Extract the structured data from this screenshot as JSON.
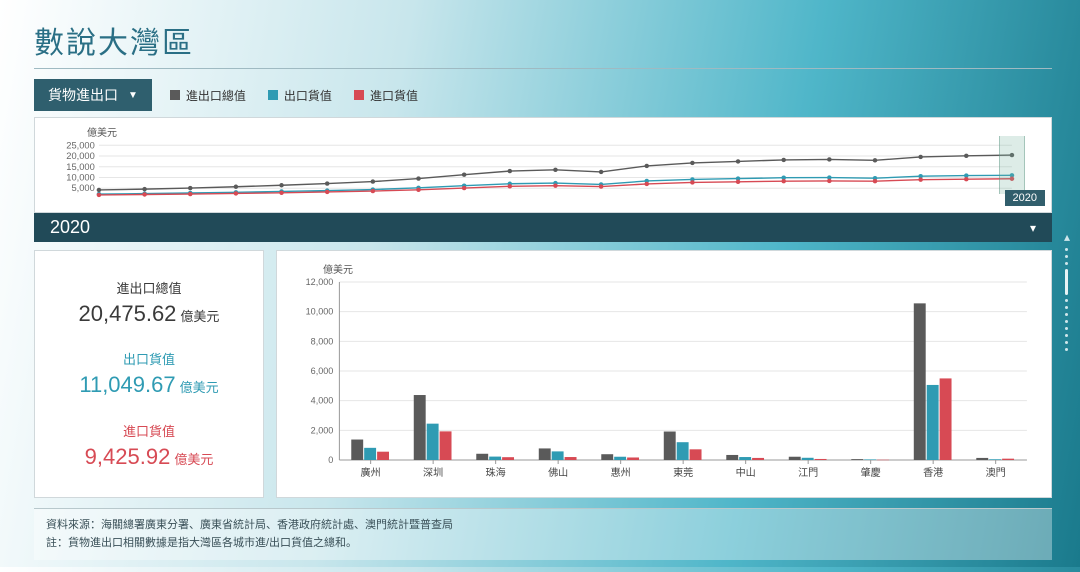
{
  "title": "數說大灣區",
  "dropdown": {
    "label": "貨物進出口"
  },
  "legend": [
    {
      "label": "進出口總值",
      "color": "#5a5a5a"
    },
    {
      "label": "出口貨值",
      "color": "#2f9bb3"
    },
    {
      "label": "進口貨值",
      "color": "#d74a54"
    }
  ],
  "line_chart": {
    "y_axis_label": "億美元",
    "y_ticks": [
      5000,
      10000,
      15000,
      20000,
      25000
    ],
    "ylim": [
      0,
      27000
    ],
    "n_points": 21,
    "series": [
      {
        "color": "#5a5a5a",
        "values": [
          4200,
          4600,
          5100,
          5700,
          6400,
          7200,
          8100,
          9500,
          11300,
          13000,
          13600,
          12600,
          15400,
          16800,
          17500,
          18200,
          18400,
          18000,
          19600,
          20100,
          20476
        ]
      },
      {
        "color": "#2f9bb3",
        "values": [
          2300,
          2500,
          2800,
          3100,
          3500,
          3900,
          4400,
          5200,
          6200,
          7100,
          7400,
          6800,
          8400,
          9100,
          9500,
          9900,
          10000,
          9700,
          10600,
          10900,
          11050
        ]
      },
      {
        "color": "#d74a54",
        "values": [
          1900,
          2100,
          2300,
          2600,
          2900,
          3300,
          3700,
          4300,
          5100,
          5900,
          6200,
          5800,
          7000,
          7700,
          8000,
          8300,
          8400,
          8300,
          9000,
          9200,
          9426
        ]
      }
    ],
    "marker_radius": 2.2,
    "line_width": 1.4,
    "highlight_index": 20,
    "year_tag": "2020",
    "background": "#ffffff",
    "grid_color": "#e6e6e6"
  },
  "year_strip": {
    "year": "2020"
  },
  "stats": [
    {
      "label": "進出口總值",
      "value": "20,475.62",
      "unit": "億美元",
      "color": "#3a3a3a"
    },
    {
      "label": "出口貨值",
      "value": "11,049.67",
      "unit": "億美元",
      "color": "#2f9bb3"
    },
    {
      "label": "進口貨值",
      "value": "9,425.92",
      "unit": "億美元",
      "color": "#d74a54"
    }
  ],
  "bar_chart": {
    "y_axis_label": "億美元",
    "ylim": [
      0,
      12000
    ],
    "ytick_step": 2000,
    "categories": [
      "廣州",
      "深圳",
      "珠海",
      "佛山",
      "惠州",
      "東莞",
      "中山",
      "江門",
      "肇慶",
      "香港",
      "澳門"
    ],
    "series": [
      {
        "color": "#5a5a5a",
        "values": [
          1380,
          4380,
          420,
          780,
          390,
          1920,
          340,
          220,
          60,
          10560,
          140
        ]
      },
      {
        "color": "#2f9bb3",
        "values": [
          820,
          2450,
          230,
          580,
          220,
          1200,
          200,
          150,
          40,
          5060,
          50
        ]
      },
      {
        "color": "#d74a54",
        "values": [
          560,
          1930,
          190,
          200,
          170,
          720,
          140,
          70,
          20,
          5500,
          90
        ]
      }
    ],
    "bar_group_width": 0.62,
    "background": "#ffffff",
    "grid_color": "#e6e6e6",
    "label_fontsize": 10
  },
  "footer": {
    "line1": "資料來源：海關總署廣東分署、廣東省統計局、香港政府統計處、澳門統計暨普查局",
    "line2": "註：貨物進出口相關數據是指大灣區各城市進/出口貨值之總和。"
  }
}
